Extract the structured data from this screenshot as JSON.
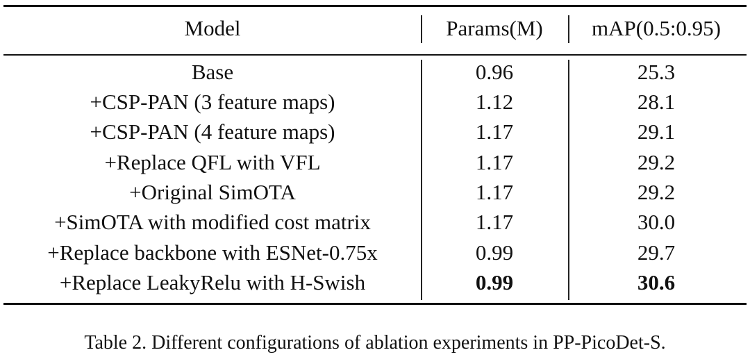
{
  "table": {
    "headers": {
      "model": "Model",
      "params": "Params(M)",
      "map": "mAP(0.5:0.95)"
    },
    "rows": [
      {
        "model": "Base",
        "params": "0.96",
        "map": "25.3",
        "bold": false
      },
      {
        "model": "+CSP-PAN (3 feature maps)",
        "params": "1.12",
        "map": "28.1",
        "bold": false
      },
      {
        "model": "+CSP-PAN (4 feature maps)",
        "params": "1.17",
        "map": "29.1",
        "bold": false
      },
      {
        "model": "+Replace QFL with VFL",
        "params": "1.17",
        "map": "29.2",
        "bold": false
      },
      {
        "model": "+Original SimOTA",
        "params": "1.17",
        "map": "29.2",
        "bold": false
      },
      {
        "model": "+SimOTA with modified cost matrix",
        "params": "1.17",
        "map": "30.0",
        "bold": false
      },
      {
        "model": "+Replace backbone with ESNet-0.75x",
        "params": "0.99",
        "map": "29.7",
        "bold": false
      },
      {
        "model": "+Replace LeakyRelu with H-Swish",
        "params": "0.99",
        "map": "30.6",
        "bold": true
      }
    ]
  },
  "caption": "Table 2. Different configurations of ablation experiments in PP-PicoDet-S."
}
